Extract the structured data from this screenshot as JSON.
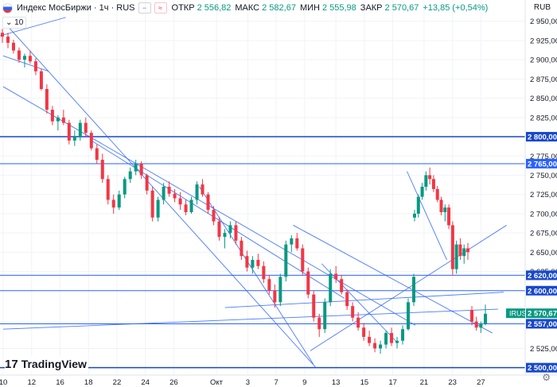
{
  "header": {
    "title": "Индекс МосБиржи · 1ч · RUS",
    "open_label": "ОТКР",
    "open": "2 556,82",
    "high_label": "МАКС",
    "high": "2 582,67",
    "low_label": "МИН",
    "low": "2 555,98",
    "close_label": "ЗАКР",
    "close": "2 570,67",
    "change": "+13,85 (+0,54%)",
    "interval_badge": "10",
    "currency": "RUB"
  },
  "logo_text": "TradingView",
  "colors": {
    "up": "#089981",
    "down": "#f23645",
    "trendline": "#2962ff",
    "level_dark": "#1848cc"
  },
  "chart_data": {
    "type": "candlestick",
    "title": "Индекс МосБиржи · 1ч · RUS",
    "ylim": [
      2495,
      2975
    ],
    "y_ticks": [
      "2 950,00",
      "2 925,00",
      "2 900,00",
      "2 875,00",
      "2 850,00",
      "2 825,00",
      "2 775,00",
      "2 750,00",
      "2 725,00",
      "2 700,00",
      "2 675,00",
      "2 650,00",
      "2 625,00",
      "2 525,00"
    ],
    "x_ticks": [
      "10",
      "12",
      "16",
      "18",
      "22",
      "24",
      "26",
      "Окт",
      "3",
      "7",
      "9",
      "13",
      "15",
      "17",
      "21",
      "23",
      "27"
    ],
    "x_tick_pos": [
      0.0,
      1.0,
      2.0,
      3.0,
      4.0,
      5.0,
      6.0,
      7.5,
      8.6,
      9.6,
      10.6,
      11.7,
      12.7,
      13.7,
      14.8,
      15.8,
      16.8
    ],
    "price_labels": [
      {
        "text": "2 800,00",
        "value": 2800,
        "style": "dark"
      },
      {
        "text": "2 765,00",
        "value": 2765,
        "style": "light"
      },
      {
        "text": "2 620,00",
        "value": 2620,
        "style": "dark"
      },
      {
        "text": "2 600,00",
        "value": 2600,
        "style": "dark"
      },
      {
        "text": "2 570,67",
        "value": 2570.67,
        "style": "green",
        "tag": "IRUS"
      },
      {
        "text": "2 557,00",
        "value": 2557,
        "style": "dark"
      },
      {
        "text": "2 500,00",
        "value": 2500,
        "style": "dark"
      }
    ],
    "horizontal_lines": [
      {
        "value": 2800,
        "width": 1.5
      },
      {
        "value": 2765,
        "width": 1
      },
      {
        "value": 2620,
        "width": 1
      },
      {
        "value": 2600,
        "width": 1
      },
      {
        "value": 2557,
        "width": 1
      },
      {
        "value": 2500,
        "width": 1.5
      }
    ],
    "trend_lines": [
      [
        -0.2,
        2930,
        2.2,
        2955
      ],
      [
        0.0,
        2905,
        1.6,
        2885
      ],
      [
        0.0,
        2950,
        11.0,
        2500
      ],
      [
        0.0,
        2865,
        14.5,
        2555
      ],
      [
        3.1,
        2795,
        12.0,
        2590
      ],
      [
        6.9,
        2735,
        10.9,
        2505
      ],
      [
        11.2,
        2635,
        13.8,
        2535
      ],
      [
        7.8,
        2578,
        17.6,
        2598
      ],
      [
        0.0,
        2550,
        17.4,
        2576
      ],
      [
        10.2,
        2685,
        17.2,
        2545
      ],
      [
        10.8,
        2522,
        17.7,
        2685
      ],
      [
        14.2,
        2755,
        15.6,
        2640
      ]
    ],
    "candles": [
      [
        2935,
        2940,
        2922,
        2930
      ],
      [
        2930,
        2935,
        2915,
        2922
      ],
      [
        2922,
        2926,
        2908,
        2912
      ],
      [
        2912,
        2916,
        2896,
        2900
      ],
      [
        2900,
        2908,
        2890,
        2905
      ],
      [
        2905,
        2912,
        2895,
        2898
      ],
      [
        2898,
        2902,
        2880,
        2885
      ],
      [
        2885,
        2888,
        2860,
        2862
      ],
      [
        2862,
        2868,
        2830,
        2835
      ],
      [
        2835,
        2840,
        2815,
        2820
      ],
      [
        2820,
        2828,
        2808,
        2825
      ],
      [
        2825,
        2835,
        2815,
        2818
      ],
      [
        2818,
        2822,
        2790,
        2795
      ],
      [
        2795,
        2808,
        2788,
        2800
      ],
      [
        2800,
        2822,
        2795,
        2818
      ],
      [
        2818,
        2825,
        2800,
        2805
      ],
      [
        2805,
        2808,
        2782,
        2785
      ],
      [
        2785,
        2790,
        2765,
        2770
      ],
      [
        2770,
        2778,
        2740,
        2745
      ],
      [
        2745,
        2750,
        2712,
        2718
      ],
      [
        2718,
        2725,
        2700,
        2708
      ],
      [
        2708,
        2730,
        2705,
        2725
      ],
      [
        2725,
        2748,
        2720,
        2745
      ],
      [
        2745,
        2760,
        2740,
        2755
      ],
      [
        2755,
        2770,
        2750,
        2765
      ],
      [
        2765,
        2768,
        2745,
        2750
      ],
      [
        2750,
        2752,
        2725,
        2730
      ],
      [
        2730,
        2735,
        2690,
        2695
      ],
      [
        2695,
        2722,
        2690,
        2718
      ],
      [
        2718,
        2740,
        2712,
        2735
      ],
      [
        2735,
        2742,
        2722,
        2726
      ],
      [
        2726,
        2732,
        2715,
        2720
      ],
      [
        2720,
        2728,
        2705,
        2712
      ],
      [
        2712,
        2718,
        2698,
        2702
      ],
      [
        2702,
        2722,
        2700,
        2718
      ],
      [
        2718,
        2742,
        2712,
        2738
      ],
      [
        2738,
        2745,
        2722,
        2725
      ],
      [
        2725,
        2728,
        2700,
        2705
      ],
      [
        2705,
        2710,
        2685,
        2690
      ],
      [
        2690,
        2696,
        2665,
        2670
      ],
      [
        2670,
        2680,
        2655,
        2675
      ],
      [
        2675,
        2690,
        2668,
        2685
      ],
      [
        2685,
        2690,
        2660,
        2665
      ],
      [
        2665,
        2670,
        2640,
        2645
      ],
      [
        2645,
        2652,
        2625,
        2630
      ],
      [
        2630,
        2645,
        2622,
        2640
      ],
      [
        2640,
        2648,
        2628,
        2632
      ],
      [
        2632,
        2638,
        2610,
        2615
      ],
      [
        2615,
        2620,
        2595,
        2600
      ],
      [
        2600,
        2608,
        2578,
        2585
      ],
      [
        2585,
        2622,
        2580,
        2618
      ],
      [
        2618,
        2665,
        2612,
        2660
      ],
      [
        2660,
        2672,
        2650,
        2668
      ],
      [
        2668,
        2675,
        2652,
        2655
      ],
      [
        2655,
        2660,
        2620,
        2625
      ],
      [
        2625,
        2630,
        2590,
        2595
      ],
      [
        2595,
        2600,
        2560,
        2565
      ],
      [
        2565,
        2570,
        2540,
        2550
      ],
      [
        2550,
        2590,
        2545,
        2585
      ],
      [
        2585,
        2628,
        2580,
        2622
      ],
      [
        2622,
        2632,
        2610,
        2615
      ],
      [
        2615,
        2620,
        2595,
        2598
      ],
      [
        2598,
        2602,
        2575,
        2580
      ],
      [
        2580,
        2585,
        2560,
        2565
      ],
      [
        2565,
        2572,
        2548,
        2552
      ],
      [
        2552,
        2558,
        2535,
        2540
      ],
      [
        2540,
        2548,
        2528,
        2532
      ],
      [
        2532,
        2538,
        2520,
        2525
      ],
      [
        2525,
        2535,
        2518,
        2530
      ],
      [
        2530,
        2548,
        2525,
        2545
      ],
      [
        2545,
        2552,
        2528,
        2532
      ],
      [
        2532,
        2540,
        2525,
        2535
      ],
      [
        2535,
        2555,
        2530,
        2550
      ],
      [
        2550,
        2590,
        2548,
        2585
      ],
      [
        2585,
        2622,
        2580,
        2618
      ],
      [
        2695,
        2705,
        2690,
        2700
      ],
      [
        2700,
        2725,
        2695,
        2722
      ],
      [
        2722,
        2740,
        2718,
        2735
      ],
      [
        2735,
        2755,
        2730,
        2750
      ],
      [
        2750,
        2760,
        2738,
        2745
      ],
      [
        2745,
        2750,
        2728,
        2732
      ],
      [
        2732,
        2736,
        2715,
        2718
      ],
      [
        2718,
        2722,
        2698,
        2702
      ],
      [
        2702,
        2712,
        2690,
        2708
      ],
      [
        2708,
        2712,
        2680,
        2685
      ],
      [
        2685,
        2690,
        2620,
        2628
      ],
      [
        2628,
        2665,
        2622,
        2660
      ],
      [
        2660,
        2668,
        2640,
        2645
      ],
      [
        2645,
        2660,
        2635,
        2655
      ],
      [
        2655,
        2662,
        2640,
        2650
      ],
      [
        2575,
        2580,
        2555,
        2560
      ],
      [
        2560,
        2566,
        2548,
        2552
      ],
      [
        2552,
        2560,
        2545,
        2557
      ],
      [
        2557,
        2582,
        2555,
        2570
      ]
    ]
  }
}
